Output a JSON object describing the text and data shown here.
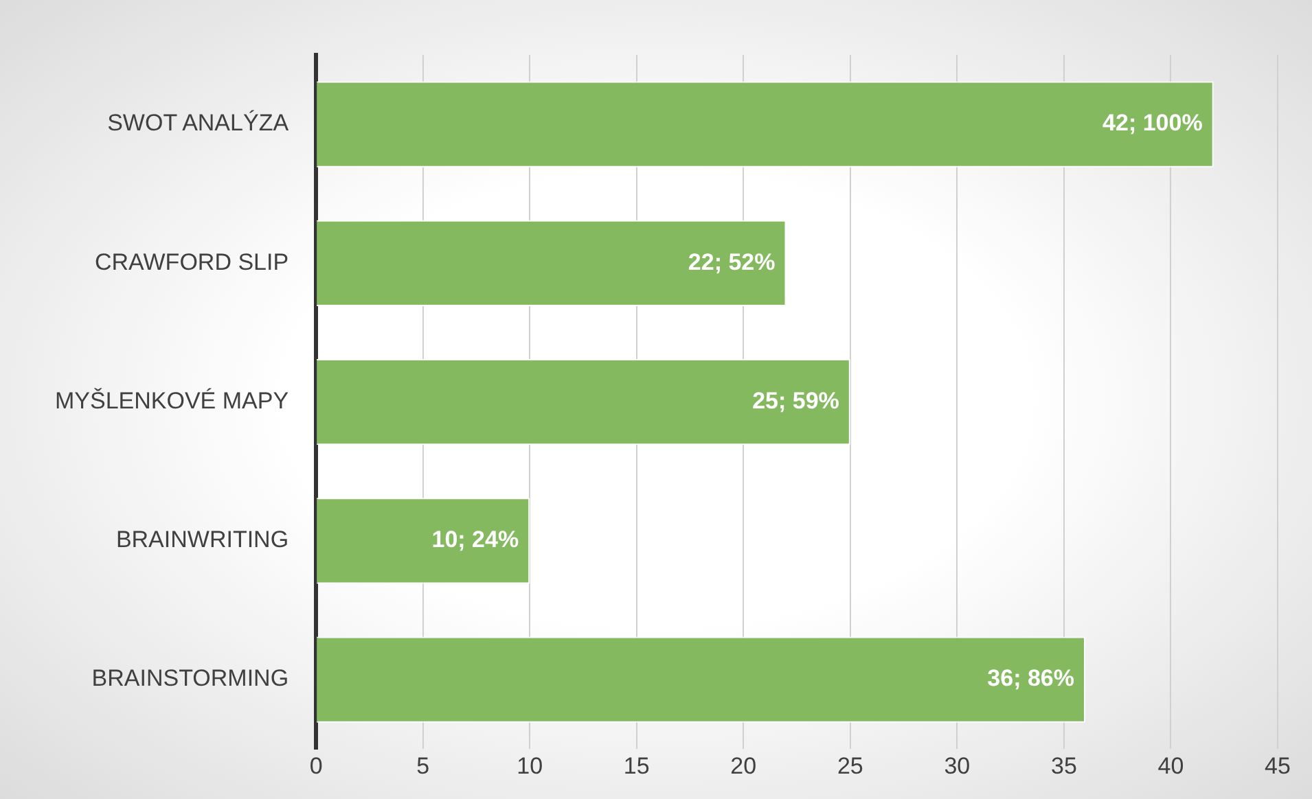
{
  "chart_data": {
    "type": "bar",
    "orientation": "horizontal",
    "categories": [
      "SWOT ANALÝZA",
      "CRAWFORD SLIP",
      "MYŠLENKOVÉ MAPY",
      "BRAINWRITING",
      "BRAINSTORMING"
    ],
    "values": [
      42,
      22,
      25,
      10,
      36
    ],
    "value_labels": [
      "42; 100%",
      "22; 52%",
      "25; 59%",
      "10; 24%",
      "36; 86%"
    ],
    "color": "#84b95f",
    "xlim": [
      0,
      45
    ],
    "xticks": [
      0,
      5,
      10,
      15,
      20,
      25,
      30,
      35,
      40,
      45
    ],
    "grid": "x",
    "legend": false
  }
}
